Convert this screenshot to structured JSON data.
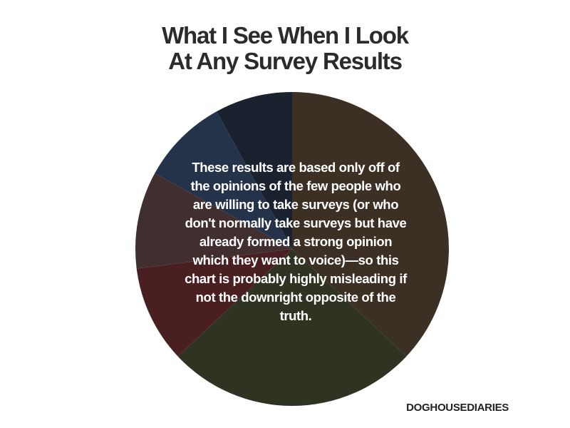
{
  "chart_data": {
    "type": "pie",
    "title_lines": [
      "What I See When I Look",
      "At Any Survey Results"
    ],
    "annotation": "These results are based only off of the opinions of the few people who are willing to take surveys (or who don't normally take surveys but have already formed a strong opinion which they want to voice)—so this chart is probably highly misleading if not the downright opposite of the truth.",
    "slices": [
      {
        "value": 37,
        "color": "#3c2f24"
      },
      {
        "value": 26,
        "color": "#2e3322"
      },
      {
        "value": 10,
        "color": "#4a1f21"
      },
      {
        "value": 10,
        "color": "#412e2f"
      },
      {
        "value": 9,
        "color": "#25334a"
      },
      {
        "value": 8,
        "color": "#1a2230"
      }
    ],
    "start_angle_deg": 0,
    "direction": "clockwise"
  },
  "credit": "DOGHOUSEDIARIES"
}
